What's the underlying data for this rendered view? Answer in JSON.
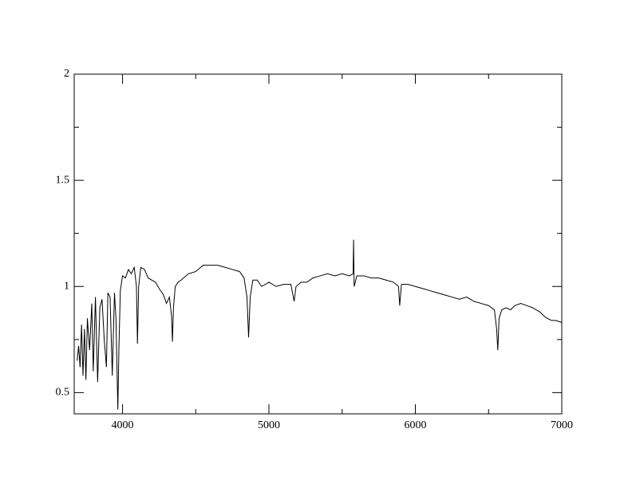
{
  "chart_data": {
    "type": "line",
    "x": [
      3690,
      3700,
      3710,
      3720,
      3730,
      3740,
      3750,
      3760,
      3775,
      3790,
      3800,
      3815,
      3830,
      3845,
      3860,
      3875,
      3890,
      3900,
      3915,
      3930,
      3945,
      3955,
      3968,
      3975,
      3985,
      4000,
      4020,
      4040,
      4060,
      4080,
      4095,
      4102,
      4110,
      4125,
      4150,
      4175,
      4200,
      4225,
      4250,
      4280,
      4300,
      4320,
      4335,
      4341,
      4348,
      4360,
      4380,
      4400,
      4450,
      4500,
      4550,
      4600,
      4650,
      4700,
      4750,
      4800,
      4830,
      4850,
      4861,
      4872,
      4890,
      4920,
      4950,
      5000,
      5050,
      5100,
      5150,
      5172,
      5185,
      5220,
      5260,
      5300,
      5350,
      5400,
      5450,
      5500,
      5550,
      5575,
      5578,
      5582,
      5600,
      5650,
      5700,
      5750,
      5800,
      5850,
      5885,
      5893,
      5905,
      5950,
      6000,
      6050,
      6100,
      6150,
      6200,
      6250,
      6300,
      6350,
      6400,
      6450,
      6500,
      6540,
      6555,
      6563,
      6572,
      6590,
      6620,
      6650,
      6680,
      6720,
      6760,
      6800,
      6850,
      6880,
      6900,
      6930,
      6960,
      7000
    ],
    "series": [
      {
        "color": "#000000",
        "values": [
          0.65,
          0.72,
          0.62,
          0.82,
          0.58,
          0.8,
          0.56,
          0.85,
          0.7,
          0.92,
          0.6,
          0.95,
          0.55,
          0.9,
          0.94,
          0.75,
          0.62,
          0.97,
          0.95,
          0.58,
          0.97,
          0.85,
          0.42,
          0.7,
          0.98,
          1.05,
          1.04,
          1.08,
          1.06,
          1.09,
          1.0,
          0.73,
          1.0,
          1.09,
          1.08,
          1.04,
          1.03,
          1.02,
          0.99,
          0.96,
          0.92,
          0.95,
          0.86,
          0.74,
          0.9,
          1.0,
          1.02,
          1.03,
          1.06,
          1.07,
          1.1,
          1.1,
          1.1,
          1.09,
          1.08,
          1.07,
          1.04,
          0.95,
          0.76,
          0.95,
          1.03,
          1.03,
          1.0,
          1.02,
          1.0,
          1.01,
          1.01,
          0.93,
          1.0,
          1.02,
          1.02,
          1.04,
          1.05,
          1.06,
          1.05,
          1.06,
          1.05,
          1.06,
          1.22,
          1.0,
          1.05,
          1.05,
          1.04,
          1.04,
          1.03,
          1.02,
          1.0,
          0.91,
          1.01,
          1.01,
          1.0,
          0.99,
          0.98,
          0.97,
          0.96,
          0.95,
          0.94,
          0.95,
          0.93,
          0.92,
          0.91,
          0.89,
          0.8,
          0.7,
          0.85,
          0.89,
          0.9,
          0.89,
          0.91,
          0.92,
          0.91,
          0.9,
          0.88,
          0.86,
          0.85,
          0.84,
          0.84,
          0.83
        ]
      }
    ],
    "xlim": [
      3670,
      7000
    ],
    "ylim": [
      0.4,
      2
    ],
    "xticks": [
      4000,
      5000,
      6000,
      7000
    ],
    "yticks": [
      0.5,
      1,
      1.5,
      2
    ],
    "xminorticks": [
      4500,
      5500,
      6500
    ],
    "yminorticks": [
      0.75,
      1.25,
      1.75
    ]
  }
}
